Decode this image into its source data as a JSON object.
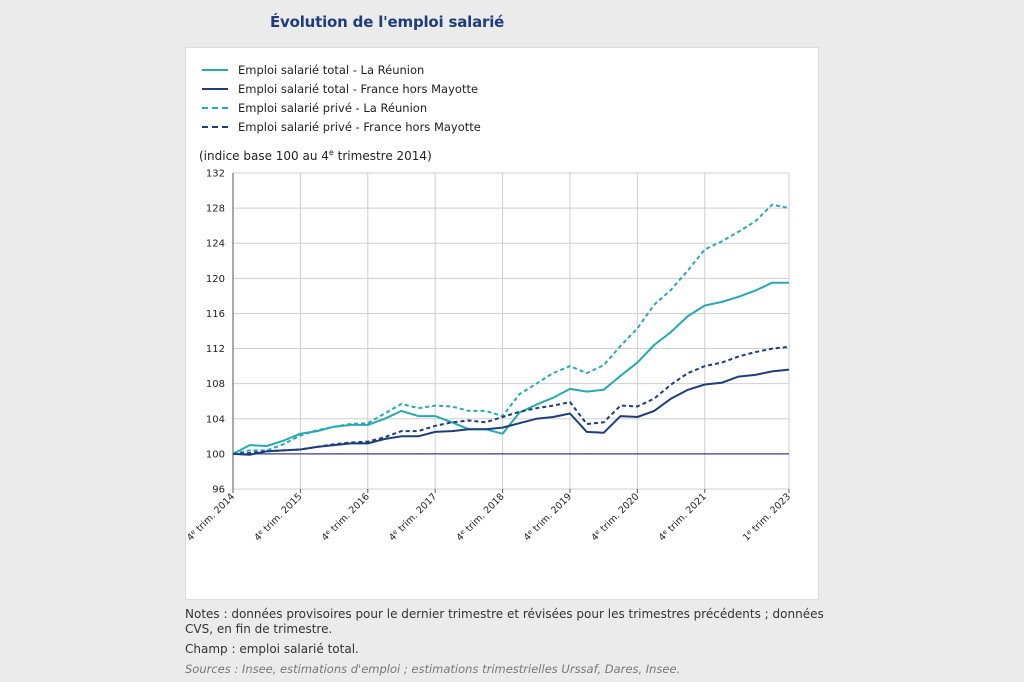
{
  "title": "Évolution de l'emploi salarié",
  "unit_label": "(indice base 100 au 4e trimestre 2014)",
  "notes": "Notes : données provisoires pour le dernier trimestre et révisées pour les trimestres précédents ; données CVS, en fin de trimestre.",
  "champ": "Champ : emploi salarié total.",
  "sources": "Sources : Insee, estimations d'emploi ; estimations trimestrielles Urssaf, Dares, Insee.",
  "chart_data": {
    "type": "line",
    "title": "",
    "xlabel": "",
    "ylabel": "",
    "ylim": [
      96,
      132
    ],
    "yticks": [
      96,
      100,
      104,
      108,
      112,
      116,
      120,
      124,
      128,
      132
    ],
    "grid": true,
    "legend_position": "top-left",
    "x_tick_labels": [
      {
        "index": 0,
        "label": "4e trim. 2014"
      },
      {
        "index": 4,
        "label": "4e trim. 2015"
      },
      {
        "index": 8,
        "label": "4e trim. 2016"
      },
      {
        "index": 12,
        "label": "4e trim. 2017"
      },
      {
        "index": 16,
        "label": "4e trim. 2018"
      },
      {
        "index": 20,
        "label": "4e trim. 2019"
      },
      {
        "index": 24,
        "label": "4e trim. 2020"
      },
      {
        "index": 28,
        "label": "4e trim. 2021"
      },
      {
        "index": 33,
        "label": "1e trim. 2023"
      }
    ],
    "x": [
      "T4 2014",
      "T1 2015",
      "T2 2015",
      "T3 2015",
      "T4 2015",
      "T1 2016",
      "T2 2016",
      "T3 2016",
      "T4 2016",
      "T1 2017",
      "T2 2017",
      "T3 2017",
      "T4 2017",
      "T1 2018",
      "T2 2018",
      "T3 2018",
      "T4 2018",
      "T1 2019",
      "T2 2019",
      "T3 2019",
      "T4 2019",
      "T1 2020",
      "T2 2020",
      "T3 2020",
      "T4 2020",
      "T1 2021",
      "T2 2021",
      "T3 2021",
      "T4 2021",
      "T1 2022",
      "T2 2022",
      "T3 2022",
      "T4 2022",
      "T1 2023"
    ],
    "series": [
      {
        "name": "Emploi salarié total - La Réunion",
        "color": "#26a9b5",
        "dash": false,
        "values": [
          100.0,
          101.0,
          100.9,
          101.5,
          102.3,
          102.6,
          103.1,
          103.3,
          103.3,
          104.0,
          104.9,
          104.3,
          104.3,
          103.6,
          102.8,
          102.8,
          102.3,
          104.7,
          105.6,
          106.4,
          107.4,
          107.1,
          107.3,
          108.9,
          110.4,
          112.4,
          113.9,
          115.7,
          116.9,
          117.3,
          117.9,
          118.6,
          119.5,
          119.5
        ]
      },
      {
        "name": "Emploi salarié total - France hors Mayotte",
        "color": "#1c3f7c",
        "dash": false,
        "values": [
          100.0,
          99.9,
          100.3,
          100.4,
          100.5,
          100.8,
          101.0,
          101.2,
          101.2,
          101.7,
          102.0,
          102.0,
          102.5,
          102.6,
          102.8,
          102.8,
          103.0,
          103.5,
          104.0,
          104.2,
          104.6,
          102.5,
          102.4,
          104.3,
          104.2,
          104.9,
          106.3,
          107.3,
          107.9,
          108.1,
          108.8,
          109.0,
          109.4,
          109.6
        ]
      },
      {
        "name": "Emploi salarié privé - La Réunion",
        "color": "#26a9b5",
        "dash": true,
        "values": [
          100.0,
          100.4,
          100.4,
          101.1,
          102.1,
          102.7,
          103.1,
          103.4,
          103.5,
          104.6,
          105.7,
          105.2,
          105.5,
          105.4,
          104.9,
          104.9,
          104.3,
          106.8,
          108.0,
          109.2,
          110.0,
          109.2,
          110.1,
          112.3,
          114.3,
          117.0,
          118.7,
          120.9,
          123.3,
          124.2,
          125.3,
          126.5,
          128.4,
          128.0
        ]
      },
      {
        "name": "Emploi salarié privé - France hors Mayotte",
        "color": "#1c3f7c",
        "dash": true,
        "values": [
          100.0,
          100.1,
          100.3,
          100.4,
          100.5,
          100.8,
          101.1,
          101.3,
          101.4,
          101.9,
          102.6,
          102.6,
          103.2,
          103.6,
          103.8,
          103.6,
          104.2,
          104.8,
          105.2,
          105.5,
          105.9,
          103.4,
          103.6,
          105.5,
          105.4,
          106.3,
          107.9,
          109.2,
          110.0,
          110.4,
          111.1,
          111.6,
          112.0,
          112.2
        ]
      }
    ]
  }
}
